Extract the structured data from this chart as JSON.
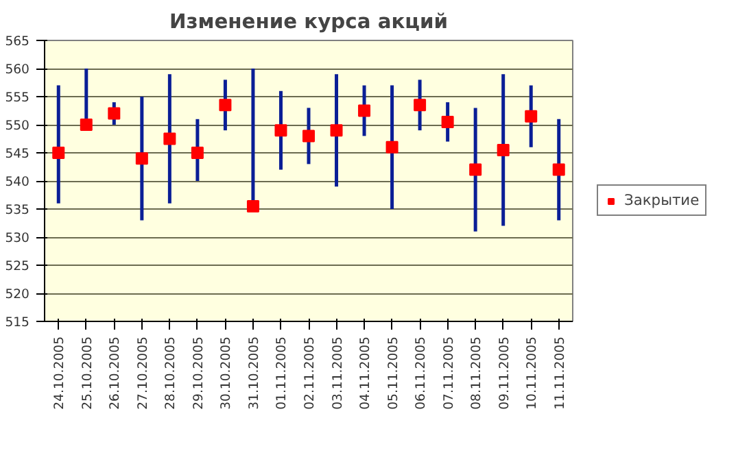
{
  "chart_data": {
    "type": "scatter",
    "title": "Изменение курса акций",
    "categories": [
      "24.10.2005",
      "25.10.2005",
      "26.10.2005",
      "27.10.2005",
      "28.10.2005",
      "29.10.2005",
      "30.10.2005",
      "31.10.2005",
      "01.11.2005",
      "02.11.2005",
      "03.11.2005",
      "04.11.2005",
      "05.11.2005",
      "06.11.2005",
      "07.11.2005",
      "08.11.2005",
      "09.11.2005",
      "10.11.2005",
      "11.11.2005"
    ],
    "series": [
      {
        "name": "Закрытие",
        "color": "#ff0000",
        "values": [
          545,
          550,
          552,
          544,
          547.5,
          545,
          553.5,
          535.5,
          549,
          548,
          549,
          552.5,
          546,
          553.5,
          550.5,
          542,
          545.5,
          551.5,
          542
        ],
        "errors": [
          [
            536,
            557
          ],
          [
            550,
            560
          ],
          [
            550,
            554
          ],
          [
            533,
            555
          ],
          [
            536,
            559
          ],
          [
            540,
            551
          ],
          [
            549,
            558
          ],
          [
            535.5,
            560
          ],
          [
            542,
            556
          ],
          [
            543,
            553
          ],
          [
            539,
            559
          ],
          [
            548,
            557
          ],
          [
            535,
            557
          ],
          [
            549,
            558
          ],
          [
            547,
            554
          ],
          [
            531,
            553
          ],
          [
            532,
            559
          ],
          [
            546,
            557
          ],
          [
            533,
            551
          ]
        ]
      }
    ],
    "ylim": [
      515,
      565
    ],
    "yticks": [
      515,
      520,
      525,
      530,
      535,
      540,
      545,
      550,
      555,
      560,
      565
    ],
    "grid": "y",
    "legend": "right",
    "marker": "square"
  }
}
